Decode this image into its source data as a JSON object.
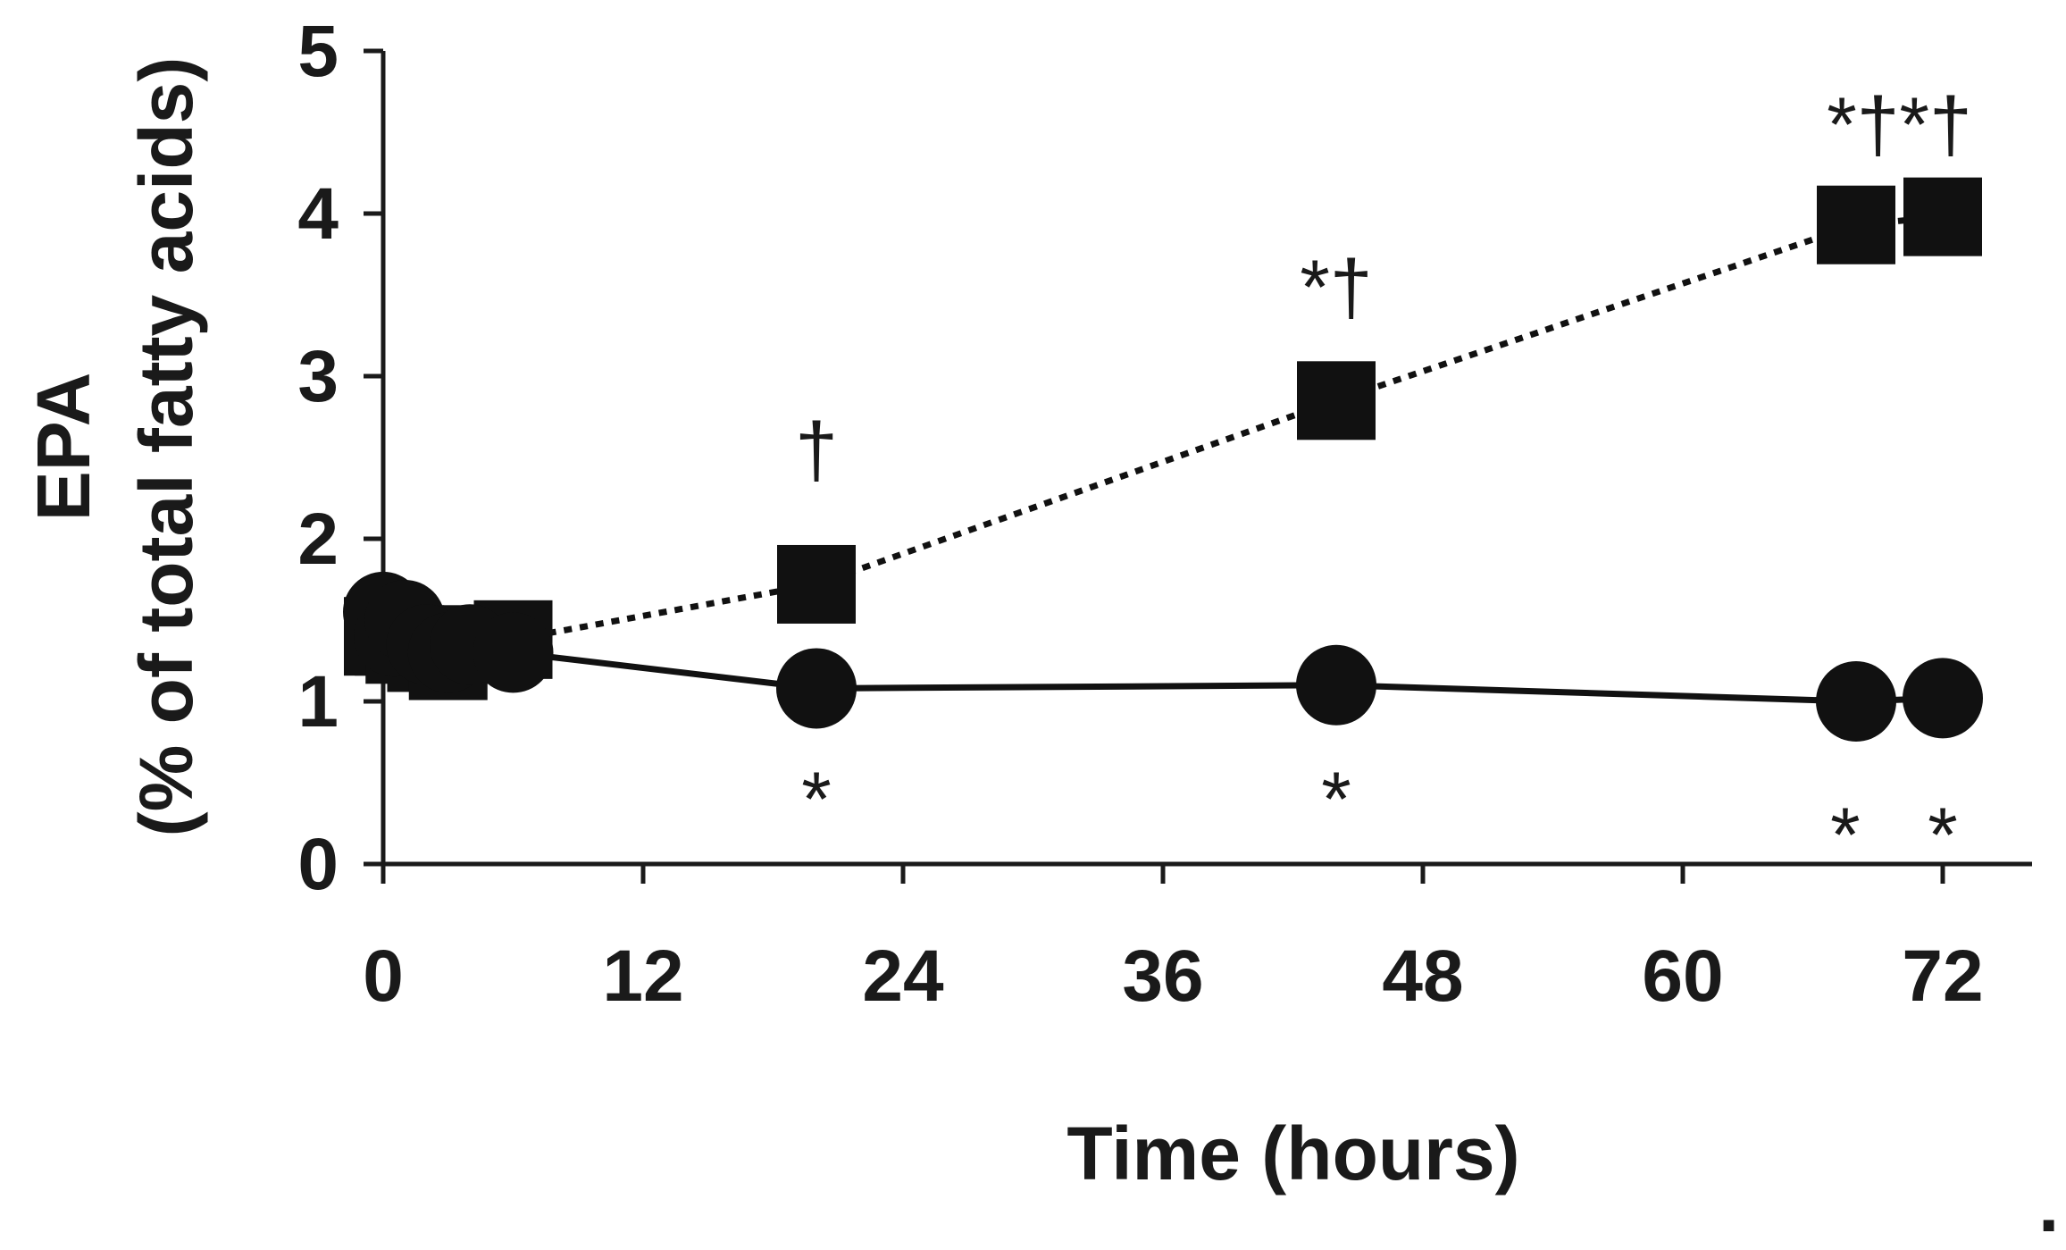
{
  "chart_data": {
    "type": "line",
    "title": "",
    "xlabel": "Time (hours)",
    "ylabel_line1": "EPA",
    "ylabel_line2": "(% of total fatty acids)",
    "xlim": [
      0,
      76
    ],
    "ylim": [
      0,
      5
    ],
    "xticks": [
      0,
      12,
      24,
      36,
      48,
      60,
      72
    ],
    "yticks": [
      0,
      1,
      2,
      3,
      4,
      5
    ],
    "grid": false,
    "legend": "none",
    "trailing_mark": ".",
    "series": [
      {
        "marker": "square",
        "line_style": "dotted",
        "color": "#111111",
        "points": [
          {
            "x": 0,
            "y": 1.4
          },
          {
            "x": 0.5,
            "y": 1.4
          },
          {
            "x": 1,
            "y": 1.35
          },
          {
            "x": 2,
            "y": 1.3
          },
          {
            "x": 3,
            "y": 1.25
          },
          {
            "x": 4,
            "y": 1.35
          },
          {
            "x": 6,
            "y": 1.38
          },
          {
            "x": 20,
            "y": 1.72
          },
          {
            "x": 44,
            "y": 2.85
          },
          {
            "x": 68,
            "y": 3.93
          },
          {
            "x": 72,
            "y": 3.98
          }
        ]
      },
      {
        "marker": "circle",
        "line_style": "solid",
        "color": "#111111",
        "points": [
          {
            "x": 0,
            "y": 1.55
          },
          {
            "x": 0.5,
            "y": 1.4
          },
          {
            "x": 1,
            "y": 1.5
          },
          {
            "x": 2,
            "y": 1.35
          },
          {
            "x": 3,
            "y": 1.3
          },
          {
            "x": 4,
            "y": 1.35
          },
          {
            "x": 6,
            "y": 1.3
          },
          {
            "x": 20,
            "y": 1.08
          },
          {
            "x": 44,
            "y": 1.1
          },
          {
            "x": 68,
            "y": 1.0
          },
          {
            "x": 72,
            "y": 1.02
          }
        ]
      }
    ],
    "annotations": [
      {
        "text": "†",
        "x": 20,
        "y": 2.55
      },
      {
        "text": "*†",
        "x": 44,
        "y": 3.55
      },
      {
        "text": "*†*†",
        "x": 70,
        "y": 4.55
      },
      {
        "text": "*",
        "x": 20,
        "y": 0.4
      },
      {
        "text": "*",
        "x": 44,
        "y": 0.4
      },
      {
        "text": "*",
        "x": 67.5,
        "y": 0.18
      },
      {
        "text": "*",
        "x": 72,
        "y": 0.18
      }
    ]
  }
}
